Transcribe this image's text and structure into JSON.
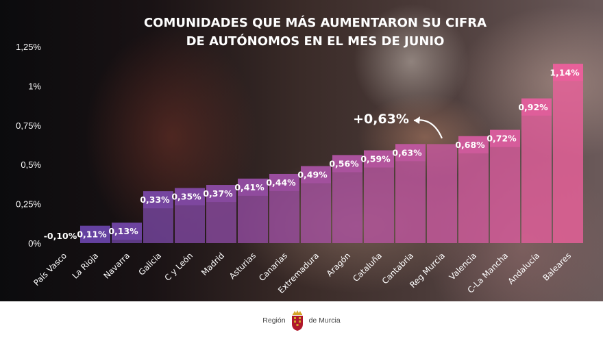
{
  "chart_data": {
    "type": "bar",
    "title_lines": [
      "COMUNIDADES QUE MÁS AUMENTARON SU CIFRA",
      "DE AUTÓNOMOS EN EL MES DE JUNIO"
    ],
    "categories": [
      "País Vasco",
      "La Rioja",
      "Navarra",
      "Galicia",
      "C y León",
      "Madrid",
      "Asturias",
      "Canarias",
      "Extremadura",
      "Aragón",
      "Cataluña",
      "Cantabria",
      "Reg Murcia",
      "Valencia",
      "C-La Mancha",
      "Andalucía",
      "Baleares"
    ],
    "values": [
      -0.1,
      0.11,
      0.13,
      0.33,
      0.35,
      0.37,
      0.41,
      0.44,
      0.49,
      0.56,
      0.59,
      0.63,
      0.63,
      0.68,
      0.72,
      0.92,
      1.14
    ],
    "labels": [
      "-0,10%",
      "0,11%",
      "0,13%",
      "0,33%",
      "0,35%",
      "0,37%",
      "0,41%",
      "0,44%",
      "0,49%",
      "0,56%",
      "0,59%",
      "0,63%",
      "",
      "0,68%",
      "0,72%",
      "0,92%",
      "1,14%"
    ],
    "yticks": [
      0,
      0.25,
      0.5,
      0.75,
      1,
      1.25
    ],
    "ytick_labels": [
      "0%",
      "0,25%",
      "0,5%",
      "0,75%",
      "1%",
      "1,25%"
    ],
    "ylim": [
      0,
      1.25
    ],
    "xlabel": "",
    "ylabel": "",
    "highlight": {
      "category": "Reg Murcia",
      "label": "+0,63%"
    },
    "colors": {
      "start": "#5b3fa0",
      "end": "#e8609a"
    }
  },
  "footer": {
    "left": "Región",
    "right": "de Murcia"
  }
}
